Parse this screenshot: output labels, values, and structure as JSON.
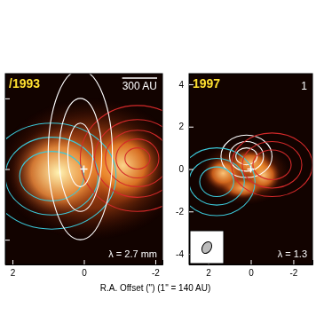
{
  "chart_data": [
    {
      "type": "image_contour",
      "title": "/1993",
      "annotations": [
        "300 AU",
        "λ = 2.7 mm"
      ],
      "xlabel": "R.A. Offset (\") (1\" = 140 AU)",
      "xlim": [
        2.2,
        -2.2
      ],
      "ylim": [
        -2.7,
        2.7
      ],
      "xticks": [
        2,
        0,
        -2
      ],
      "yticks": [
        2,
        0,
        -2
      ],
      "tick_labels": "x",
      "star": {
        "x": 0,
        "y": 0
      },
      "emission": [
        {
          "x": -0.2,
          "y": 0.0,
          "rx": 2.6,
          "ry": 2.0,
          "peak": 0.45
        },
        {
          "x": 0.7,
          "y": -0.1,
          "rx": 1.4,
          "ry": 1.3,
          "peak": 1.0
        },
        {
          "x": -1.1,
          "y": 0.1,
          "rx": 1.1,
          "ry": 1.1,
          "peak": 0.85
        }
      ],
      "contours": [
        {
          "color": "#3cc8d8",
          "levels": [
            {
              "x": 0.9,
              "y": -0.2,
              "rx": 1.8,
              "ry": 1.5
            },
            {
              "x": 0.9,
              "y": -0.2,
              "rx": 1.3,
              "ry": 1.1
            },
            {
              "x": 0.9,
              "y": -0.2,
              "rx": 0.9,
              "ry": 0.7
            }
          ]
        },
        {
          "color": "#d42a2a",
          "levels": [
            {
              "x": -1.5,
              "y": 0.3,
              "rx": 1.6,
              "ry": 1.5
            },
            {
              "x": -1.5,
              "y": 0.3,
              "rx": 1.2,
              "ry": 1.1
            },
            {
              "x": -1.5,
              "y": 0.3,
              "rx": 0.9,
              "ry": 0.8
            },
            {
              "x": -1.5,
              "y": 0.3,
              "rx": 0.6,
              "ry": 0.55
            },
            {
              "x": -1.5,
              "y": 0.3,
              "rx": 0.35,
              "ry": 0.3
            }
          ]
        },
        {
          "color": "#ffffff",
          "levels": [
            {
              "x": 0.1,
              "y": 0.4,
              "rx": 0.9,
              "ry": 2.4
            },
            {
              "x": 0.1,
              "y": 0.4,
              "rx": 0.6,
              "ry": 1.6
            },
            {
              "x": 0.1,
              "y": 0.4,
              "rx": 0.35,
              "ry": 0.9
            }
          ]
        }
      ]
    },
    {
      "type": "image_contour",
      "title": "1997",
      "annotations": [
        "1",
        "λ = 1.3"
      ],
      "xlim": [
        2.9,
        -2.9
      ],
      "ylim": [
        -4.5,
        4.5
      ],
      "xticks": [
        2,
        0,
        -2
      ],
      "yticks": [
        4,
        2,
        0,
        -2,
        -4
      ],
      "star": {
        "x": 0,
        "y": 0
      },
      "emission": [
        {
          "x": 0.3,
          "y": -0.2,
          "rx": 2.2,
          "ry": 1.5,
          "peak": 0.35
        },
        {
          "x": 1.3,
          "y": -0.2,
          "rx": 0.9,
          "ry": 0.8,
          "peak": 0.8
        },
        {
          "x": 0.0,
          "y": 0.3,
          "rx": 1.0,
          "ry": 0.6,
          "peak": 0.75
        },
        {
          "x": -0.6,
          "y": -0.3,
          "rx": 0.8,
          "ry": 0.8,
          "peak": 0.8
        },
        {
          "x": 0.4,
          "y": -0.9,
          "rx": 1.0,
          "ry": 0.5,
          "peak": 0.7
        }
      ],
      "contours": [
        {
          "color": "#ffffff",
          "levels": [
            {
              "x": 0.2,
              "y": 0.6,
              "rx": 1.2,
              "ry": 1.0
            },
            {
              "x": 0.2,
              "y": 0.6,
              "rx": 0.8,
              "ry": 0.7
            },
            {
              "x": 0.2,
              "y": 0.6,
              "rx": 0.5,
              "ry": 0.4
            }
          ]
        },
        {
          "color": "#3cc8d8",
          "levels": [
            {
              "x": 1.6,
              "y": -0.6,
              "rx": 1.8,
              "ry": 1.6
            },
            {
              "x": 1.6,
              "y": -0.6,
              "rx": 1.3,
              "ry": 1.1
            },
            {
              "x": 1.6,
              "y": -0.6,
              "rx": 0.8,
              "ry": 0.7
            }
          ]
        },
        {
          "color": "#d42a2a",
          "levels": [
            {
              "x": -1.0,
              "y": 0.2,
              "rx": 1.9,
              "ry": 1.5
            },
            {
              "x": -1.0,
              "y": 0.2,
              "rx": 1.4,
              "ry": 1.1
            },
            {
              "x": -1.0,
              "y": 0.2,
              "rx": 0.9,
              "ry": 0.7
            }
          ]
        }
      ]
    }
  ]
}
